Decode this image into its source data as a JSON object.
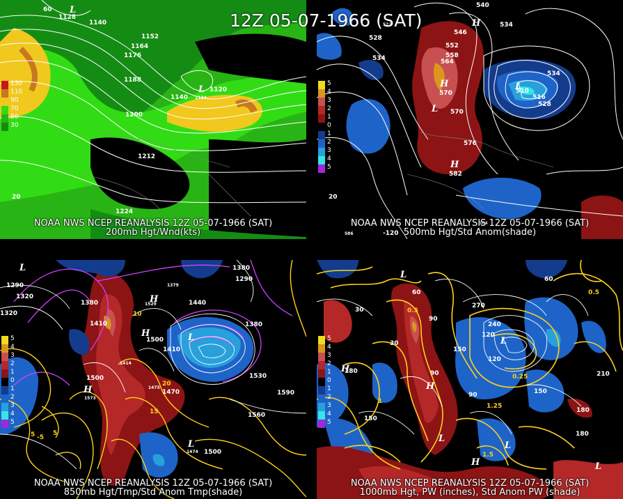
{
  "title": "12Z 05-07-1966 (SAT)",
  "colors": {
    "background": "#000000",
    "contour": "#ffffff",
    "yellow_contour": "#ffd21a",
    "magenta_contour": "#d040ff",
    "pos_anom": "#b01818",
    "neg_anom": "#1d58b8"
  },
  "panels": [
    {
      "caption_line1": "NOAA NWS NCEP REANALYSIS 12Z 05-07-1966 (SAT)",
      "caption_line2": "200mb Hgt/Wnd(kts)",
      "legend": [
        {
          "label": "130",
          "color": "#c8141e"
        },
        {
          "label": "110",
          "color": "#c8781e"
        },
        {
          "label": "90",
          "color": "#f0c81e"
        },
        {
          "label": "70",
          "color": "#32dc14"
        },
        {
          "label": "50",
          "color": "#28b414"
        },
        {
          "label": "30",
          "color": "#148c14"
        }
      ],
      "labels": [
        "1128",
        "1140",
        "1152",
        "1164",
        "1176",
        "1188",
        "1200",
        "1140",
        "1120",
        "1212",
        "1224",
        "L",
        "L",
        "1124",
        "60",
        "20"
      ]
    },
    {
      "caption_line1": "NOAA NWS NCEP REANALYSIS 12Z 05-07-1966 (SAT)",
      "caption_line2": "500mb Hgt/Std Anom(shade)",
      "legend": [
        {
          "label": "5",
          "color": "#f0dc1e"
        },
        {
          "label": "4",
          "color": "#dc961e"
        },
        {
          "label": "3",
          "color": "#c85050"
        },
        {
          "label": "2",
          "color": "#b42828"
        },
        {
          "label": "1",
          "color": "#8c1414"
        },
        {
          "label": "0",
          "color": "#000000"
        },
        {
          "label": "1",
          "color": "#143c8c"
        },
        {
          "label": "2",
          "color": "#1e64c8"
        },
        {
          "label": "3",
          "color": "#28a0dc"
        },
        {
          "label": "4",
          "color": "#32e6e6"
        },
        {
          "label": "5",
          "color": "#a028dc"
        }
      ],
      "labels": [
        "540",
        "534",
        "528",
        "546",
        "552",
        "558",
        "564",
        "570",
        "534",
        "510",
        "516",
        "528",
        "570",
        "576",
        "582",
        "H",
        "H",
        "H",
        "L",
        "L",
        "586",
        "-120",
        "564",
        "20",
        "522",
        "534"
      ]
    },
    {
      "caption_line1": "NOAA NWS NCEP REANALYSIS 12Z 05-07-1966 (SAT)",
      "caption_line2": "850mb Hgt/Tmp/Std Anom Tmp(shade)",
      "legend": [
        {
          "label": "5",
          "color": "#f0dc1e"
        },
        {
          "label": "4",
          "color": "#dc961e"
        },
        {
          "label": "3",
          "color": "#c85050"
        },
        {
          "label": "2",
          "color": "#b42828"
        },
        {
          "label": "1",
          "color": "#8c1414"
        },
        {
          "label": "0",
          "color": "#000000"
        },
        {
          "label": "1",
          "color": "#143c8c"
        },
        {
          "label": "2",
          "color": "#1e64c8"
        },
        {
          "label": "3",
          "color": "#28a0dc"
        },
        {
          "label": "4",
          "color": "#32e6e6"
        },
        {
          "label": "5",
          "color": "#a028dc"
        }
      ],
      "labels": [
        "1290",
        "1320",
        "1380",
        "1410",
        "1440",
        "1500",
        "1410",
        "1380",
        "1500",
        "1470",
        "1530",
        "1560",
        "1590",
        "1500",
        "1380",
        "1320",
        "1290",
        "H",
        "H",
        "H",
        "L",
        "L",
        "L",
        "5",
        "5",
        "10",
        "15",
        "20",
        "-5",
        "1414",
        "1573",
        "1475",
        "1474",
        "1529",
        "1379"
      ]
    },
    {
      "caption_line1": "NOAA NWS NCEP REANALYSIS 12Z 05-07-1966 (SAT)",
      "caption_line2": "1000mb Hgt, PW (inches), Std Anom PW (shade)",
      "legend": [
        {
          "label": "5",
          "color": "#f0dc1e"
        },
        {
          "label": "4",
          "color": "#dc961e"
        },
        {
          "label": "3",
          "color": "#c85050"
        },
        {
          "label": "2",
          "color": "#b42828"
        },
        {
          "label": "1",
          "color": "#8c1414"
        },
        {
          "label": "0",
          "color": "#000000"
        },
        {
          "label": "1",
          "color": "#143c8c"
        },
        {
          "label": "2",
          "color": "#1e64c8"
        },
        {
          "label": "3",
          "color": "#28a0dc"
        },
        {
          "label": "4",
          "color": "#32e6e6"
        },
        {
          "label": "5",
          "color": "#a028dc"
        }
      ],
      "labels": [
        "30",
        "60",
        "90",
        "120",
        "150",
        "180",
        "210",
        "240",
        "270",
        "0.25",
        "0.5",
        "1",
        "1.25",
        "1.5",
        "0.5",
        "90",
        "150",
        "180",
        "120",
        "60",
        "L",
        "L",
        "L",
        "H",
        "H",
        "H",
        "L",
        "L",
        "30",
        "150",
        "90",
        "180"
      ]
    }
  ]
}
